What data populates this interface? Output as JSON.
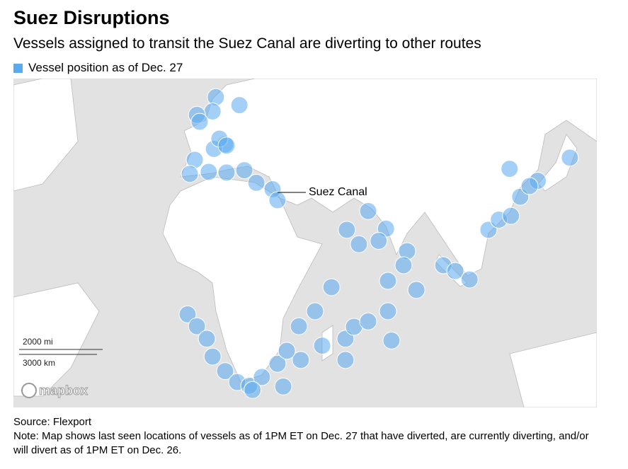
{
  "title": "Suez Disruptions",
  "subtitle": "Vessels assigned to transit the Suez Canal are diverting to other routes",
  "legend": {
    "label": "Vessel position as of Dec. 27",
    "color": "#5aaaf0"
  },
  "annotation": "Suez Canal",
  "scale": {
    "miles": "2000 mi",
    "km": "3000 km"
  },
  "attribution": "mapbox",
  "source": "Source: Flexport",
  "note": "Note: Map shows last seen locations of vessels as of 1PM ET on Dec. 27 that have diverted, are currently diverting, and/or will divert as of 1PM ET on Dec. 26.",
  "vessels": [
    {
      "lon": 10.5,
      "lat": 54.8
    },
    {
      "lon": 19.1,
      "lat": 53.1
    },
    {
      "lon": 9.3,
      "lat": 51.7
    },
    {
      "lon": 3.6,
      "lat": 50.9
    },
    {
      "lon": 4.6,
      "lat": 49.3
    },
    {
      "lon": 13.9,
      "lat": 43.6
    },
    {
      "lon": 9.8,
      "lat": 42.4
    },
    {
      "lon": 2.8,
      "lat": 39.4
    },
    {
      "lon": 1.0,
      "lat": 35.3
    },
    {
      "lon": 7.9,
      "lat": 35.9
    },
    {
      "lon": 14.4,
      "lat": 35.7
    },
    {
      "lon": 20.9,
      "lat": 36.4
    },
    {
      "lon": 25.3,
      "lat": 32.6
    },
    {
      "lon": 31.2,
      "lat": 30.6
    },
    {
      "lon": 33.0,
      "lat": 27.1
    },
    {
      "lon": 66.1,
      "lat": 23.5
    },
    {
      "lon": 72.6,
      "lat": 17.5
    },
    {
      "lon": 58.3,
      "lat": 17.1
    },
    {
      "lon": 62.7,
      "lat": 12.0
    },
    {
      "lon": 69.9,
      "lat": 13.2
    },
    {
      "lon": 80.3,
      "lat": 9.5
    },
    {
      "lon": 79.0,
      "lat": 4.4
    },
    {
      "lon": 73.3,
      "lat": -1.3
    },
    {
      "lon": 83.7,
      "lat": -4.6
    },
    {
      "lon": 93.5,
      "lat": 4.4
    },
    {
      "lon": 97.9,
      "lat": 2.3
    },
    {
      "lon": 103.1,
      "lat": -0.8
    },
    {
      "lon": 110.0,
      "lat": 17.1
    },
    {
      "lon": 113.8,
      "lat": 20.6
    },
    {
      "lon": 118.2,
      "lat": 21.9
    },
    {
      "lon": 121.6,
      "lat": 28.2
    },
    {
      "lon": 128.0,
      "lat": 33.2
    },
    {
      "lon": 117.7,
      "lat": 36.8
    },
    {
      "lon": 139.7,
      "lat": 40.0
    },
    {
      "lon": 0.2,
      "lat": -13.4
    },
    {
      "lon": 3.6,
      "lat": -17.6
    },
    {
      "lon": 7.2,
      "lat": -21.9
    },
    {
      "lon": 9.3,
      "lat": -27.8
    },
    {
      "lon": 13.9,
      "lat": -32.4
    },
    {
      "lon": 18.3,
      "lat": -35.7
    },
    {
      "lon": 22.7,
      "lat": -36.8
    },
    {
      "lon": 27.3,
      "lat": -34.2
    },
    {
      "lon": 33.0,
      "lat": -30.1
    },
    {
      "lon": 41.5,
      "lat": -28.9
    },
    {
      "lon": 49.3,
      "lat": -24.2
    },
    {
      "lon": 57.8,
      "lat": -21.9
    },
    {
      "lon": 60.9,
      "lat": -17.8
    },
    {
      "lon": 66.1,
      "lat": -15.9
    },
    {
      "lon": 73.3,
      "lat": -12.3
    },
    {
      "lon": 74.6,
      "lat": -22.5
    },
    {
      "lon": 57.8,
      "lat": -28.9
    },
    {
      "lon": 35.1,
      "lat": -37.0
    },
    {
      "lon": 23.9,
      "lat": -38.0
    },
    {
      "lon": 46.7,
      "lat": -12.3
    },
    {
      "lon": 40.8,
      "lat": -17.6
    },
    {
      "lon": 52.7,
      "lat": -3.6
    },
    {
      "lon": 36.4,
      "lat": -25.9
    },
    {
      "lon": 11.8,
      "lat": 45.1
    },
    {
      "lon": 14.4,
      "lat": 43.3
    },
    {
      "lon": 125.0,
      "lat": 31.6
    }
  ]
}
